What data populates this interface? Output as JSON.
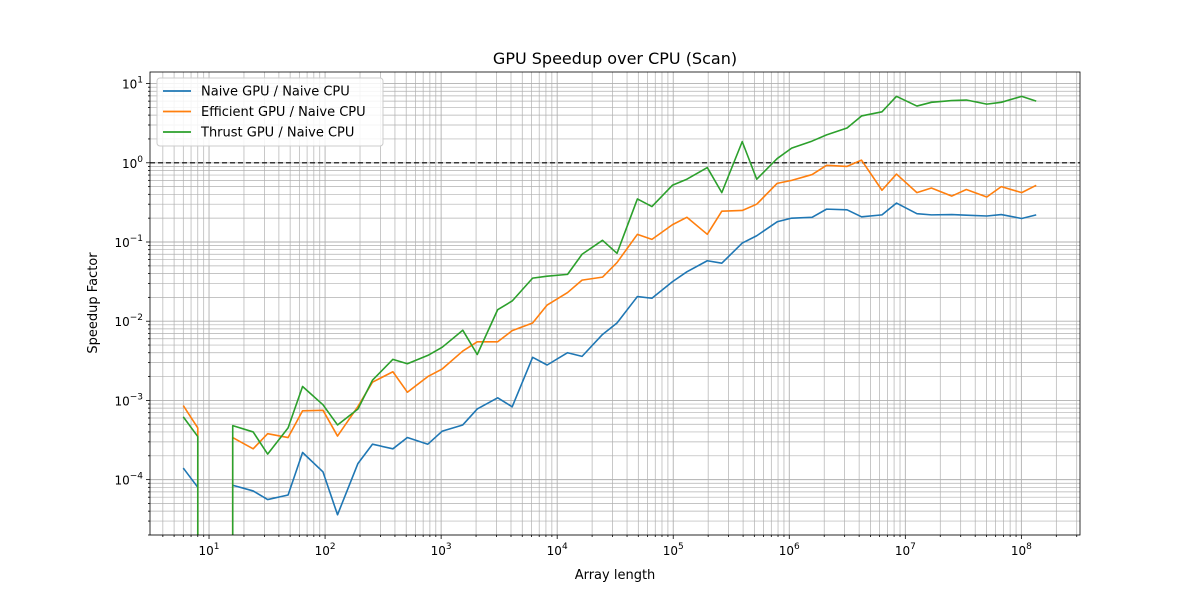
{
  "chart_data": {
    "type": "line",
    "title": "GPU Speedup over CPU (Scan)",
    "xlabel": "Array length",
    "ylabel": "Speedup Factor",
    "xscale": "log",
    "yscale": "log",
    "xlim": [
      3.1,
      320000000
    ],
    "ylim": [
      2e-05,
      14
    ],
    "grid": true,
    "legend": "upper-left",
    "x_tick_labels": [
      {
        "base": "10",
        "exp": "1"
      },
      {
        "base": "10",
        "exp": "2"
      },
      {
        "base": "10",
        "exp": "3"
      },
      {
        "base": "10",
        "exp": "4"
      },
      {
        "base": "10",
        "exp": "5"
      },
      {
        "base": "10",
        "exp": "6"
      },
      {
        "base": "10",
        "exp": "7"
      },
      {
        "base": "10",
        "exp": "8"
      }
    ],
    "y_tick_labels": [
      {
        "base": "10",
        "exp": "1"
      },
      {
        "base": "10",
        "exp": "0"
      },
      {
        "base": "10",
        "exp": "−1"
      },
      {
        "base": "10",
        "exp": "−2"
      },
      {
        "base": "10",
        "exp": "−3"
      },
      {
        "base": "10",
        "exp": "−4"
      }
    ],
    "reference_line": {
      "y": 1,
      "style": "dashed",
      "color": "#000000"
    },
    "x": [
      6,
      8,
      16,
      24,
      32,
      48,
      64,
      96,
      128,
      192,
      256,
      384,
      512,
      768,
      1024,
      1536,
      2048,
      3072,
      4096,
      6144,
      8192,
      12288,
      16384,
      24576,
      32768,
      49152,
      65536,
      98304,
      131072,
      196608,
      262144,
      393216,
      524288,
      786432,
      1048576,
      1572864,
      2097152,
      3145728,
      4194304,
      6291456,
      8388608,
      12582912,
      16777216,
      25165824,
      33554432,
      50331648,
      67108864,
      100663296,
      134217728
    ],
    "series": [
      {
        "name": "Naive GPU / Naive CPU",
        "color": "#1f77b4",
        "values": [
          0.00014,
          8e-05,
          8.5e-05,
          7.2e-05,
          5.6e-05,
          6.4e-05,
          0.00022,
          0.000125,
          3.6e-05,
          0.00016,
          0.00028,
          0.000245,
          0.00034,
          0.00028,
          0.00041,
          0.00049,
          0.00078,
          0.00108,
          0.00083,
          0.0035,
          0.0028,
          0.004,
          0.0036,
          0.0068,
          0.0095,
          0.0205,
          0.0195,
          0.0315,
          0.042,
          0.058,
          0.054,
          0.097,
          0.12,
          0.18,
          0.2,
          0.205,
          0.26,
          0.255,
          0.208,
          0.22,
          0.31,
          0.228,
          0.22,
          0.222,
          0.218,
          0.213,
          0.222,
          0.198,
          0.22
        ]
      },
      {
        "name": "Efficient GPU / Naive CPU",
        "color": "#ff7f0e",
        "values": [
          0.00086,
          0.00045,
          0.00034,
          0.000245,
          0.00038,
          0.00034,
          0.00074,
          0.00075,
          0.000355,
          0.00084,
          0.0017,
          0.0023,
          0.00127,
          0.002,
          0.0025,
          0.0042,
          0.0055,
          0.0055,
          0.0076,
          0.0095,
          0.016,
          0.023,
          0.033,
          0.036,
          0.055,
          0.125,
          0.108,
          0.165,
          0.205,
          0.125,
          0.245,
          0.25,
          0.3,
          0.55,
          0.6,
          0.71,
          0.93,
          0.9,
          1.08,
          0.45,
          0.72,
          0.42,
          0.48,
          0.38,
          0.46,
          0.37,
          0.5,
          0.42,
          0.52
        ]
      },
      {
        "name": "Thrust GPU / Naive CPU",
        "color": "#2ca02c",
        "values": [
          0.00062,
          0.00035,
          0.00048,
          0.0004,
          0.00021,
          0.00045,
          0.0015,
          0.00088,
          0.00049,
          0.00078,
          0.0018,
          0.0033,
          0.0029,
          0.0037,
          0.0047,
          0.0077,
          0.0038,
          0.014,
          0.018,
          0.035,
          0.037,
          0.039,
          0.07,
          0.105,
          0.072,
          0.35,
          0.28,
          0.52,
          0.62,
          0.87,
          0.42,
          1.85,
          0.62,
          1.13,
          1.53,
          1.88,
          2.25,
          2.75,
          3.9,
          4.4,
          6.9,
          5.2,
          5.8,
          6.1,
          6.2,
          5.5,
          5.8,
          6.9,
          6.0
        ]
      }
    ]
  }
}
